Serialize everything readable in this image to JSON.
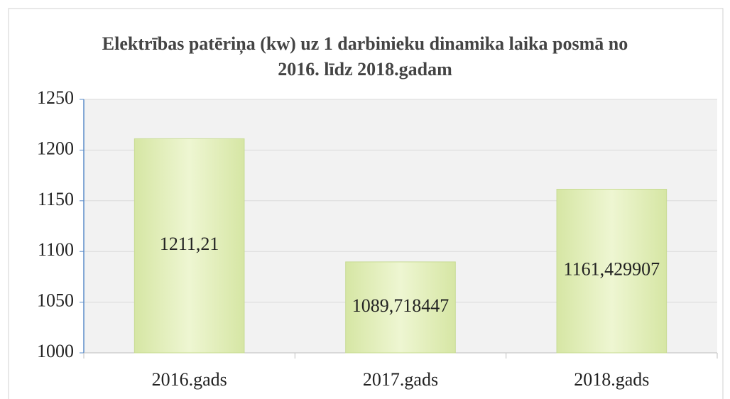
{
  "chart_data": {
    "type": "bar",
    "title": "Elektrības patēriņa (kw) uz 1 darbinieku dinamika laika posmā no 2016. līdz 2018.gadam",
    "categories": [
      "2016.gads",
      "2017.gads",
      "2018.gads"
    ],
    "values": [
      1211.21,
      1089.718447,
      1161.429907
    ],
    "value_labels": [
      "1211,21",
      "1089,718447",
      "1161,429907"
    ],
    "color": "#e4f0bd",
    "ylim": [
      1000,
      1250
    ],
    "yticks": [
      1000,
      1050,
      1100,
      1150,
      1200,
      1250
    ],
    "grid": true
  }
}
